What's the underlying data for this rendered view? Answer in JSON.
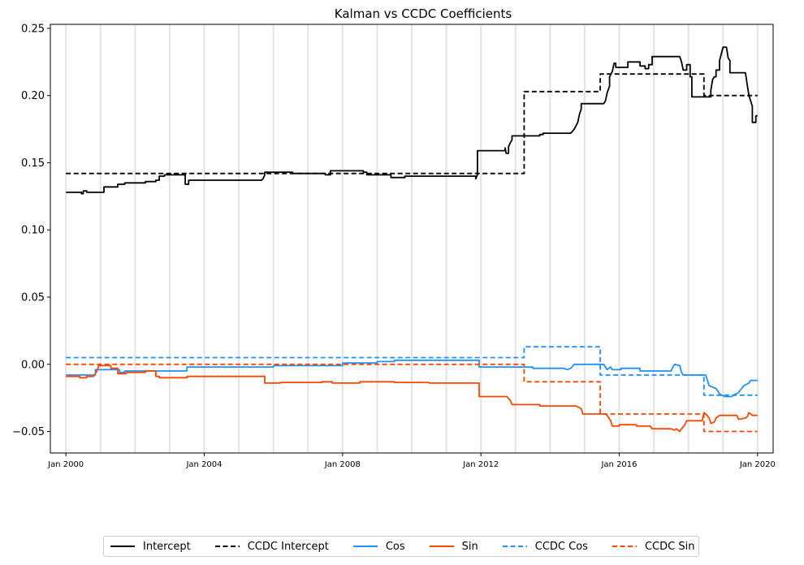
{
  "chart_data": {
    "type": "line",
    "title": "Kalman vs CCDC Coefficients",
    "xlabel": "",
    "ylabel": "",
    "xlim": [
      1999.55,
      2020.45
    ],
    "ylim": [
      -0.066,
      0.253
    ],
    "x_ticks": [
      {
        "x": 2000,
        "label": "Jan 2000"
      },
      {
        "x": 2004,
        "label": "Jan 2004"
      },
      {
        "x": 2008,
        "label": "Jan 2008"
      },
      {
        "x": 2012,
        "label": "Jan 2012"
      },
      {
        "x": 2016,
        "label": "Jan 2016"
      },
      {
        "x": 2020,
        "label": "Jan 2020"
      }
    ],
    "y_ticks": [
      {
        "y": 0.25,
        "label": "0.25"
      },
      {
        "y": 0.2,
        "label": "0.20"
      },
      {
        "y": 0.15,
        "label": "0.15"
      },
      {
        "y": 0.1,
        "label": "0.10"
      },
      {
        "y": 0.05,
        "label": "0.05"
      },
      {
        "y": 0.0,
        "label": "0.00"
      },
      {
        "y": -0.05,
        "label": "−0.05"
      }
    ],
    "vertical_gridlines_x": [
      2000,
      2001,
      2002,
      2003,
      2004,
      2005,
      2006,
      2007,
      2008,
      2009,
      2010,
      2011,
      2012,
      2013,
      2014,
      2015,
      2016,
      2017,
      2018,
      2019,
      2020
    ],
    "grid": "vertical light lines yearly",
    "legend_placement": "bottom-center",
    "series": [
      {
        "name": "Intercept",
        "color": "#000000",
        "dash": "solid",
        "points": [
          [
            2000.0,
            0.128
          ],
          [
            2000.45,
            0.128
          ],
          [
            2000.45,
            0.127
          ],
          [
            2000.5,
            0.127
          ],
          [
            2000.5,
            0.129
          ],
          [
            2000.6,
            0.129
          ],
          [
            2000.6,
            0.128
          ],
          [
            2001.1,
            0.128
          ],
          [
            2001.1,
            0.132
          ],
          [
            2001.5,
            0.132
          ],
          [
            2001.5,
            0.134
          ],
          [
            2001.7,
            0.134
          ],
          [
            2001.7,
            0.135
          ],
          [
            2002.3,
            0.135
          ],
          [
            2002.3,
            0.136
          ],
          [
            2002.6,
            0.136
          ],
          [
            2002.6,
            0.137
          ],
          [
            2002.7,
            0.137
          ],
          [
            2002.7,
            0.14
          ],
          [
            2002.85,
            0.14
          ],
          [
            2002.85,
            0.141
          ],
          [
            2003.45,
            0.141
          ],
          [
            2003.45,
            0.134
          ],
          [
            2003.55,
            0.134
          ],
          [
            2003.55,
            0.137
          ],
          [
            2005.65,
            0.137
          ],
          [
            2005.7,
            0.138
          ],
          [
            2005.75,
            0.141
          ],
          [
            2005.75,
            0.143
          ],
          [
            2006.55,
            0.143
          ],
          [
            2006.55,
            0.142
          ],
          [
            2007.5,
            0.142
          ],
          [
            2007.5,
            0.141
          ],
          [
            2007.65,
            0.141
          ],
          [
            2007.65,
            0.144
          ],
          [
            2008.6,
            0.144
          ],
          [
            2008.6,
            0.143
          ],
          [
            2008.7,
            0.143
          ],
          [
            2008.7,
            0.141
          ],
          [
            2009.4,
            0.141
          ],
          [
            2009.4,
            0.139
          ],
          [
            2009.8,
            0.139
          ],
          [
            2009.8,
            0.14
          ],
          [
            2011.85,
            0.14
          ],
          [
            2011.85,
            0.138
          ],
          [
            2011.9,
            0.141
          ],
          [
            2011.9,
            0.159
          ],
          [
            2012.7,
            0.159
          ],
          [
            2012.7,
            0.161
          ],
          [
            2012.73,
            0.157
          ],
          [
            2012.8,
            0.157
          ],
          [
            2012.8,
            0.162
          ],
          [
            2012.85,
            0.165
          ],
          [
            2012.9,
            0.167
          ],
          [
            2012.9,
            0.17
          ],
          [
            2013.7,
            0.17
          ],
          [
            2013.7,
            0.171
          ],
          [
            2013.8,
            0.171
          ],
          [
            2013.8,
            0.172
          ],
          [
            2014.6,
            0.172
          ],
          [
            2014.7,
            0.175
          ],
          [
            2014.8,
            0.18
          ],
          [
            2014.85,
            0.186
          ],
          [
            2014.9,
            0.19
          ],
          [
            2014.9,
            0.194
          ],
          [
            2015.55,
            0.194
          ],
          [
            2015.6,
            0.196
          ],
          [
            2015.65,
            0.202
          ],
          [
            2015.72,
            0.207
          ],
          [
            2015.72,
            0.214
          ],
          [
            2015.8,
            0.218
          ],
          [
            2015.85,
            0.224
          ],
          [
            2015.9,
            0.224
          ],
          [
            2015.9,
            0.221
          ],
          [
            2016.25,
            0.221
          ],
          [
            2016.25,
            0.225
          ],
          [
            2016.6,
            0.225
          ],
          [
            2016.6,
            0.222
          ],
          [
            2016.75,
            0.222
          ],
          [
            2016.75,
            0.22
          ],
          [
            2016.85,
            0.22
          ],
          [
            2016.85,
            0.223
          ],
          [
            2016.95,
            0.223
          ],
          [
            2016.95,
            0.229
          ],
          [
            2017.75,
            0.229
          ],
          [
            2017.8,
            0.225
          ],
          [
            2017.85,
            0.219
          ],
          [
            2017.95,
            0.219
          ],
          [
            2017.95,
            0.223
          ],
          [
            2018.05,
            0.223
          ],
          [
            2018.05,
            0.214
          ],
          [
            2018.1,
            0.214
          ],
          [
            2018.1,
            0.199
          ],
          [
            2018.65,
            0.199
          ],
          [
            2018.65,
            0.204
          ],
          [
            2018.7,
            0.212
          ],
          [
            2018.75,
            0.214
          ],
          [
            2018.8,
            0.214
          ],
          [
            2018.8,
            0.219
          ],
          [
            2018.9,
            0.219
          ],
          [
            2018.9,
            0.226
          ],
          [
            2019.0,
            0.236
          ],
          [
            2019.1,
            0.236
          ],
          [
            2019.15,
            0.228
          ],
          [
            2019.2,
            0.226
          ],
          [
            2019.2,
            0.217
          ],
          [
            2019.65,
            0.217
          ],
          [
            2019.7,
            0.208
          ],
          [
            2019.75,
            0.2
          ],
          [
            2019.8,
            0.196
          ],
          [
            2019.85,
            0.192
          ],
          [
            2019.85,
            0.18
          ],
          [
            2019.95,
            0.18
          ],
          [
            2019.95,
            0.185
          ],
          [
            2020.0,
            0.185
          ]
        ]
      },
      {
        "name": "CCDC Intercept",
        "color": "#000000",
        "dash": "dashed",
        "points": [
          [
            2000.0,
            0.142
          ],
          [
            2013.25,
            0.142
          ],
          [
            2013.25,
            0.203
          ],
          [
            2015.45,
            0.203
          ],
          [
            2015.45,
            0.216
          ],
          [
            2018.45,
            0.216
          ],
          [
            2018.45,
            0.2
          ],
          [
            2020.0,
            0.2
          ]
        ]
      },
      {
        "name": "Cos",
        "color": "#1e90ff",
        "dash": "solid",
        "points": [
          [
            2000.0,
            -0.008
          ],
          [
            2000.85,
            -0.008
          ],
          [
            2000.85,
            -0.004
          ],
          [
            2001.55,
            -0.004
          ],
          [
            2001.55,
            -0.006
          ],
          [
            2001.7,
            -0.006
          ],
          [
            2001.7,
            -0.005
          ],
          [
            2003.5,
            -0.005
          ],
          [
            2003.5,
            -0.002
          ],
          [
            2006.0,
            -0.002
          ],
          [
            2006.0,
            -0.001
          ],
          [
            2008.0,
            -0.001
          ],
          [
            2008.0,
            0.001
          ],
          [
            2009.0,
            0.001
          ],
          [
            2009.0,
            0.002
          ],
          [
            2009.5,
            0.002
          ],
          [
            2009.5,
            0.003
          ],
          [
            2011.95,
            0.003
          ],
          [
            2011.95,
            -0.002
          ],
          [
            2013.5,
            -0.002
          ],
          [
            2013.5,
            -0.003
          ],
          [
            2014.4,
            -0.003
          ],
          [
            2014.5,
            -0.004
          ],
          [
            2014.6,
            -0.003
          ],
          [
            2014.7,
            0.0
          ],
          [
            2015.55,
            0.0
          ],
          [
            2015.6,
            -0.002
          ],
          [
            2015.65,
            -0.004
          ],
          [
            2015.7,
            -0.003
          ],
          [
            2015.75,
            -0.002
          ],
          [
            2015.8,
            -0.004
          ],
          [
            2016.05,
            -0.004
          ],
          [
            2016.05,
            -0.003
          ],
          [
            2016.6,
            -0.003
          ],
          [
            2016.6,
            -0.005
          ],
          [
            2017.5,
            -0.005
          ],
          [
            2017.55,
            -0.002
          ],
          [
            2017.6,
            0.0
          ],
          [
            2017.75,
            -0.001
          ],
          [
            2017.8,
            -0.006
          ],
          [
            2017.85,
            -0.008
          ],
          [
            2018.5,
            -0.008
          ],
          [
            2018.55,
            -0.012
          ],
          [
            2018.6,
            -0.016
          ],
          [
            2018.8,
            -0.018
          ],
          [
            2018.9,
            -0.022
          ],
          [
            2019.05,
            -0.024
          ],
          [
            2019.25,
            -0.024
          ],
          [
            2019.3,
            -0.023
          ],
          [
            2019.45,
            -0.021
          ],
          [
            2019.6,
            -0.016
          ],
          [
            2019.75,
            -0.014
          ],
          [
            2019.8,
            -0.012
          ],
          [
            2020.0,
            -0.012
          ]
        ]
      },
      {
        "name": "Sin",
        "color": "#ff4500",
        "dash": "solid",
        "points": [
          [
            2000.0,
            -0.009
          ],
          [
            2000.4,
            -0.009
          ],
          [
            2000.4,
            -0.01
          ],
          [
            2000.6,
            -0.01
          ],
          [
            2000.6,
            -0.009
          ],
          [
            2000.8,
            -0.009
          ],
          [
            2000.9,
            -0.005
          ],
          [
            2000.95,
            -0.001
          ],
          [
            2001.3,
            -0.001
          ],
          [
            2001.3,
            -0.003
          ],
          [
            2001.5,
            -0.003
          ],
          [
            2001.5,
            -0.007
          ],
          [
            2001.75,
            -0.007
          ],
          [
            2001.75,
            -0.006
          ],
          [
            2002.3,
            -0.006
          ],
          [
            2002.3,
            -0.005
          ],
          [
            2002.6,
            -0.005
          ],
          [
            2002.6,
            -0.009
          ],
          [
            2002.7,
            -0.009
          ],
          [
            2002.7,
            -0.01
          ],
          [
            2003.5,
            -0.01
          ],
          [
            2003.5,
            -0.009
          ],
          [
            2005.75,
            -0.009
          ],
          [
            2005.75,
            -0.014
          ],
          [
            2006.2,
            -0.014
          ],
          [
            2006.2,
            -0.0135
          ],
          [
            2007.4,
            -0.0135
          ],
          [
            2007.4,
            -0.013
          ],
          [
            2007.7,
            -0.013
          ],
          [
            2007.7,
            -0.014
          ],
          [
            2008.5,
            -0.014
          ],
          [
            2008.5,
            -0.013
          ],
          [
            2009.5,
            -0.013
          ],
          [
            2009.5,
            -0.0135
          ],
          [
            2010.5,
            -0.0135
          ],
          [
            2010.5,
            -0.014
          ],
          [
            2011.95,
            -0.014
          ],
          [
            2011.95,
            -0.024
          ],
          [
            2012.75,
            -0.024
          ],
          [
            2012.85,
            -0.027
          ],
          [
            2012.9,
            -0.03
          ],
          [
            2013.7,
            -0.03
          ],
          [
            2013.7,
            -0.031
          ],
          [
            2014.75,
            -0.031
          ],
          [
            2014.9,
            -0.033
          ],
          [
            2014.95,
            -0.037
          ],
          [
            2015.6,
            -0.037
          ],
          [
            2015.65,
            -0.038
          ],
          [
            2015.75,
            -0.042
          ],
          [
            2015.8,
            -0.046
          ],
          [
            2016.0,
            -0.046
          ],
          [
            2016.0,
            -0.045
          ],
          [
            2016.5,
            -0.045
          ],
          [
            2016.5,
            -0.046
          ],
          [
            2016.9,
            -0.046
          ],
          [
            2016.95,
            -0.048
          ],
          [
            2017.5,
            -0.048
          ],
          [
            2017.6,
            -0.049
          ],
          [
            2017.65,
            -0.048
          ],
          [
            2017.75,
            -0.05
          ],
          [
            2017.8,
            -0.048
          ],
          [
            2017.9,
            -0.045
          ],
          [
            2017.95,
            -0.042
          ],
          [
            2018.4,
            -0.042
          ],
          [
            2018.45,
            -0.036
          ],
          [
            2018.5,
            -0.037
          ],
          [
            2018.6,
            -0.04
          ],
          [
            2018.65,
            -0.044
          ],
          [
            2018.75,
            -0.043
          ],
          [
            2018.8,
            -0.04
          ],
          [
            2018.9,
            -0.038
          ],
          [
            2019.4,
            -0.038
          ],
          [
            2019.45,
            -0.041
          ],
          [
            2019.65,
            -0.04
          ],
          [
            2019.7,
            -0.039
          ],
          [
            2019.75,
            -0.036
          ],
          [
            2019.85,
            -0.038
          ],
          [
            2020.0,
            -0.038
          ]
        ]
      },
      {
        "name": "CCDC Cos",
        "color": "#1e90ff",
        "dash": "dashed",
        "points": [
          [
            2000.0,
            0.005
          ],
          [
            2013.25,
            0.005
          ],
          [
            2013.25,
            0.013
          ],
          [
            2015.45,
            0.013
          ],
          [
            2015.45,
            -0.008
          ],
          [
            2018.45,
            -0.008
          ],
          [
            2018.45,
            -0.023
          ],
          [
            2020.0,
            -0.023
          ]
        ]
      },
      {
        "name": "CCDC Sin",
        "color": "#ff4500",
        "dash": "dashed",
        "points": [
          [
            2000.0,
            0.0
          ],
          [
            2013.25,
            0.0
          ],
          [
            2013.25,
            -0.013
          ],
          [
            2015.45,
            -0.013
          ],
          [
            2015.45,
            -0.037
          ],
          [
            2018.45,
            -0.037
          ],
          [
            2018.45,
            -0.05
          ],
          [
            2020.0,
            -0.05
          ]
        ]
      }
    ]
  }
}
